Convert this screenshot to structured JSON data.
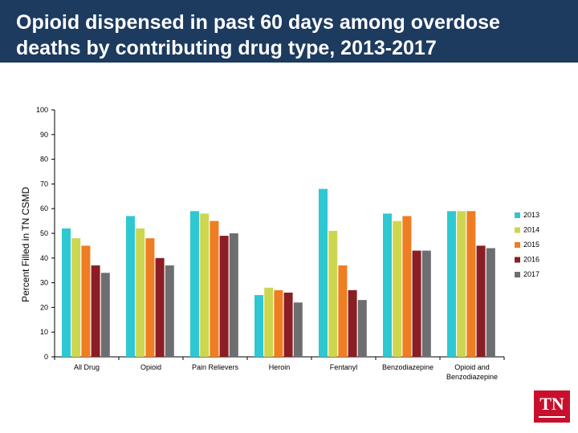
{
  "header": {
    "title": "Opioid dispensed in past 60 days among overdose deaths by contributing drug type, 2013-2017"
  },
  "logo": {
    "text": "TN"
  },
  "chart_data": {
    "type": "bar",
    "ylabel": "Percent Filled in TN CSMD",
    "xlabel": "",
    "ylim": [
      0,
      100
    ],
    "yticks": [
      0,
      10,
      20,
      30,
      40,
      50,
      60,
      70,
      80,
      90,
      100
    ],
    "grid": false,
    "legend_position": "right",
    "categories": [
      [
        "All Drug"
      ],
      [
        "Opioid"
      ],
      [
        "Pain Relievers"
      ],
      [
        "Heroin"
      ],
      [
        "Fentanyl"
      ],
      [
        "Benzodiazepine"
      ],
      [
        "Opioid and",
        "Benzodiazepine"
      ]
    ],
    "series": [
      {
        "name": "2013",
        "color": "#2ec8d2",
        "values": [
          52,
          57,
          59,
          25,
          68,
          58,
          59
        ]
      },
      {
        "name": "2014",
        "color": "#cdd64f",
        "values": [
          48,
          52,
          58,
          28,
          51,
          55,
          59
        ]
      },
      {
        "name": "2015",
        "color": "#ef7d22",
        "values": [
          45,
          48,
          55,
          27,
          37,
          57,
          59
        ]
      },
      {
        "name": "2016",
        "color": "#8b1d25",
        "values": [
          37,
          40,
          49,
          26,
          27,
          43,
          45
        ]
      },
      {
        "name": "2017",
        "color": "#6d6e70",
        "values": [
          34,
          37,
          50,
          22,
          23,
          43,
          44
        ]
      }
    ]
  }
}
